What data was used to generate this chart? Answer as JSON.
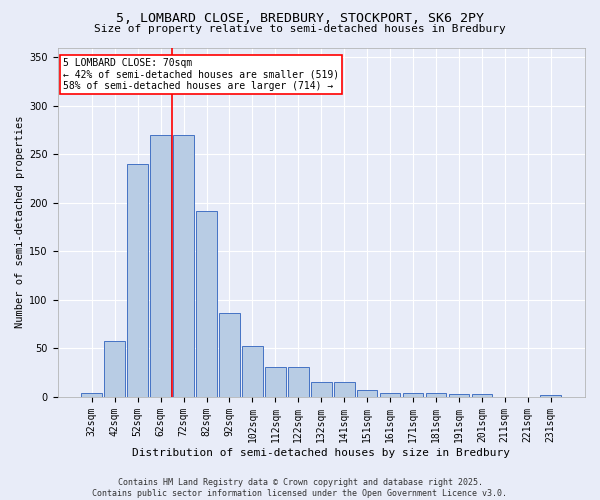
{
  "title": "5, LOMBARD CLOSE, BREDBURY, STOCKPORT, SK6 2PY",
  "subtitle": "Size of property relative to semi-detached houses in Bredbury",
  "xlabel": "Distribution of semi-detached houses by size in Bredbury",
  "ylabel": "Number of semi-detached properties",
  "categories": [
    "32sqm",
    "42sqm",
    "52sqm",
    "62sqm",
    "72sqm",
    "82sqm",
    "92sqm",
    "102sqm",
    "112sqm",
    "122sqm",
    "132sqm",
    "141sqm",
    "151sqm",
    "161sqm",
    "171sqm",
    "181sqm",
    "191sqm",
    "201sqm",
    "211sqm",
    "221sqm",
    "231sqm"
  ],
  "values": [
    4,
    58,
    240,
    270,
    270,
    192,
    86,
    52,
    31,
    31,
    15,
    15,
    7,
    4,
    4,
    4,
    3,
    3,
    0,
    0,
    2
  ],
  "bar_color": "#b8cce4",
  "bar_edge_color": "#4472c4",
  "vline_color": "red",
  "vline_x_index": 4,
  "annotation_title": "5 LOMBARD CLOSE: 70sqm",
  "annotation_line2": "← 42% of semi-detached houses are smaller (519)",
  "annotation_line3": "58% of semi-detached houses are larger (714) →",
  "annotation_box_color": "white",
  "annotation_box_edge": "red",
  "ylim": [
    0,
    360
  ],
  "yticks": [
    0,
    50,
    100,
    150,
    200,
    250,
    300,
    350
  ],
  "bg_color": "#e8ecf8",
  "grid_color": "white",
  "title_fontsize": 9.5,
  "subtitle_fontsize": 8,
  "ylabel_fontsize": 7.5,
  "xlabel_fontsize": 8,
  "tick_fontsize": 7,
  "footer_fontsize": 6,
  "annotation_fontsize": 7,
  "footer_line1": "Contains HM Land Registry data © Crown copyright and database right 2025.",
  "footer_line2": "Contains public sector information licensed under the Open Government Licence v3.0."
}
